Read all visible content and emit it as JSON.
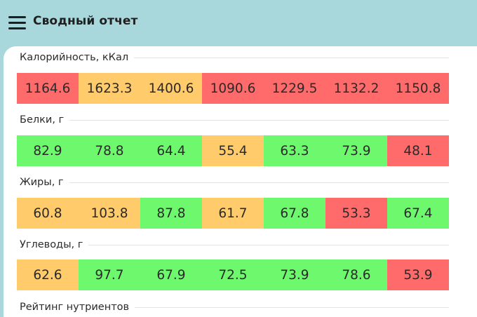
{
  "header": {
    "title": "Сводный отчет",
    "menu_icon": "hamburger-menu-icon",
    "background": "#a9d8dc"
  },
  "colors": {
    "high": "#ff6b6b",
    "medium": "#ffcb6b",
    "good": "#6ef86e"
  },
  "sections": [
    {
      "label": "Калорийность, кКал",
      "cells": [
        {
          "value": "1164.6",
          "status": "red"
        },
        {
          "value": "1623.3",
          "status": "orange"
        },
        {
          "value": "1400.6",
          "status": "orange"
        },
        {
          "value": "1090.6",
          "status": "red"
        },
        {
          "value": "1229.5",
          "status": "red"
        },
        {
          "value": "1132.2",
          "status": "red"
        },
        {
          "value": "1150.8",
          "status": "red"
        }
      ]
    },
    {
      "label": "Белки, г",
      "cells": [
        {
          "value": "82.9",
          "status": "green"
        },
        {
          "value": "78.8",
          "status": "green"
        },
        {
          "value": "64.4",
          "status": "green"
        },
        {
          "value": "55.4",
          "status": "orange"
        },
        {
          "value": "63.3",
          "status": "green"
        },
        {
          "value": "73.9",
          "status": "green"
        },
        {
          "value": "48.1",
          "status": "red"
        }
      ]
    },
    {
      "label": "Жиры, г",
      "cells": [
        {
          "value": "60.8",
          "status": "orange"
        },
        {
          "value": "103.8",
          "status": "orange"
        },
        {
          "value": "87.8",
          "status": "green"
        },
        {
          "value": "61.7",
          "status": "orange"
        },
        {
          "value": "67.8",
          "status": "green"
        },
        {
          "value": "53.3",
          "status": "red"
        },
        {
          "value": "67.4",
          "status": "green"
        }
      ]
    },
    {
      "label": "Углеводы, г",
      "cells": [
        {
          "value": "62.6",
          "status": "orange"
        },
        {
          "value": "97.7",
          "status": "green"
        },
        {
          "value": "67.9",
          "status": "green"
        },
        {
          "value": "72.5",
          "status": "green"
        },
        {
          "value": "73.9",
          "status": "green"
        },
        {
          "value": "78.6",
          "status": "green"
        },
        {
          "value": "53.9",
          "status": "red"
        }
      ]
    },
    {
      "label": "Рейтинг нутриентов",
      "cells": []
    }
  ]
}
